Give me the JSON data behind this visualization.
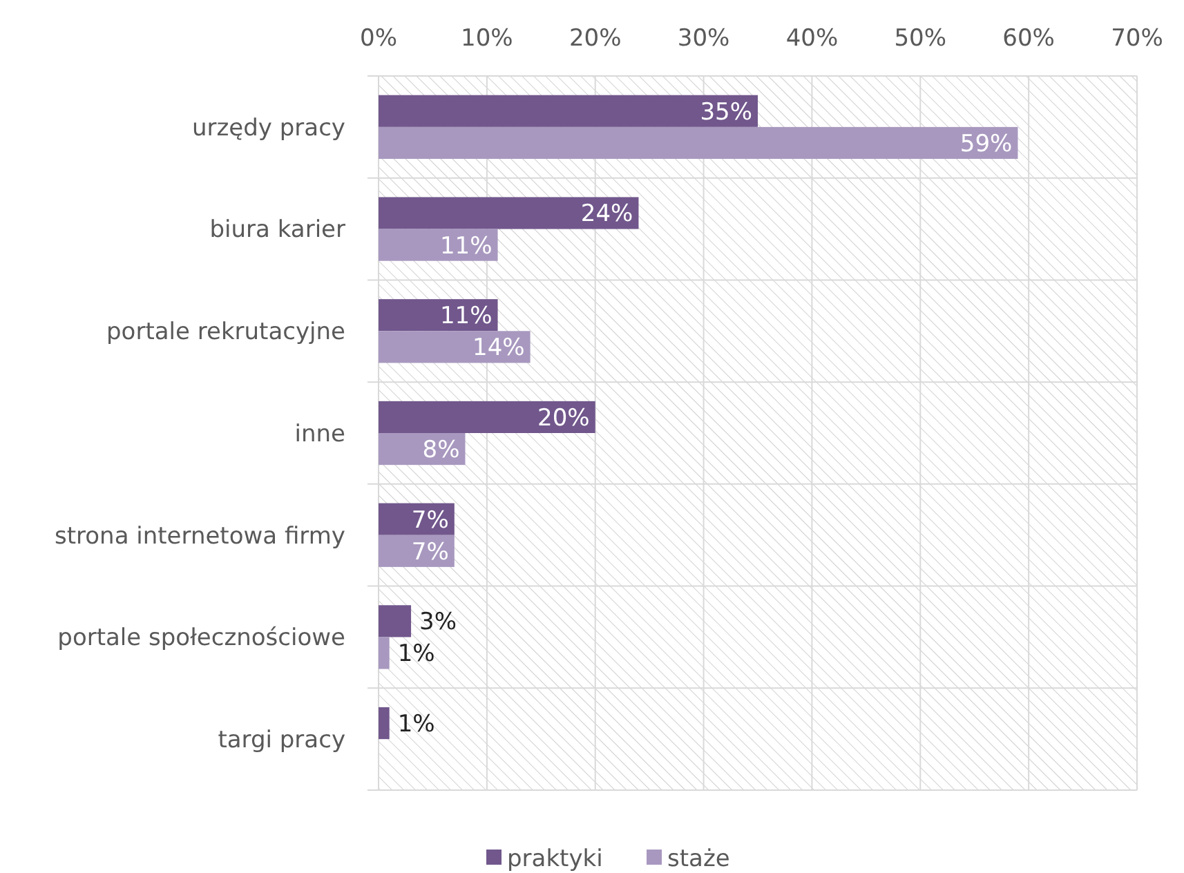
{
  "chart_data": {
    "type": "bar",
    "orientation": "horizontal",
    "categories": [
      "urzędy pracy",
      "biura karier",
      "portale rekrutacyjne",
      "inne",
      "strona internetowa firmy",
      "portale społecznościowe",
      "targi pracy"
    ],
    "series": [
      {
        "name": "praktyki",
        "color": "#71578c",
        "values": [
          35,
          24,
          11,
          20,
          7,
          3,
          1
        ],
        "value_labels": [
          "35%",
          "24%",
          "11%",
          "20%",
          "7%",
          "3%",
          "1%"
        ]
      },
      {
        "name": "staże",
        "color": "#a898bf",
        "values": [
          59,
          11,
          14,
          8,
          7,
          1,
          null
        ],
        "value_labels": [
          "59%",
          "11%",
          "14%",
          "8%",
          "7%",
          "1%",
          null
        ]
      }
    ],
    "xlim": [
      0,
      70
    ],
    "xticks": [
      {
        "value": 0,
        "label": "0%"
      },
      {
        "value": 10,
        "label": "10%"
      },
      {
        "value": 20,
        "label": "20%"
      },
      {
        "value": 30,
        "label": "30%"
      },
      {
        "value": 40,
        "label": "40%"
      },
      {
        "value": 50,
        "label": "50%"
      },
      {
        "value": 60,
        "label": "60%"
      },
      {
        "value": 70,
        "label": "70%"
      }
    ],
    "grid": "x",
    "legend": "bottom"
  }
}
